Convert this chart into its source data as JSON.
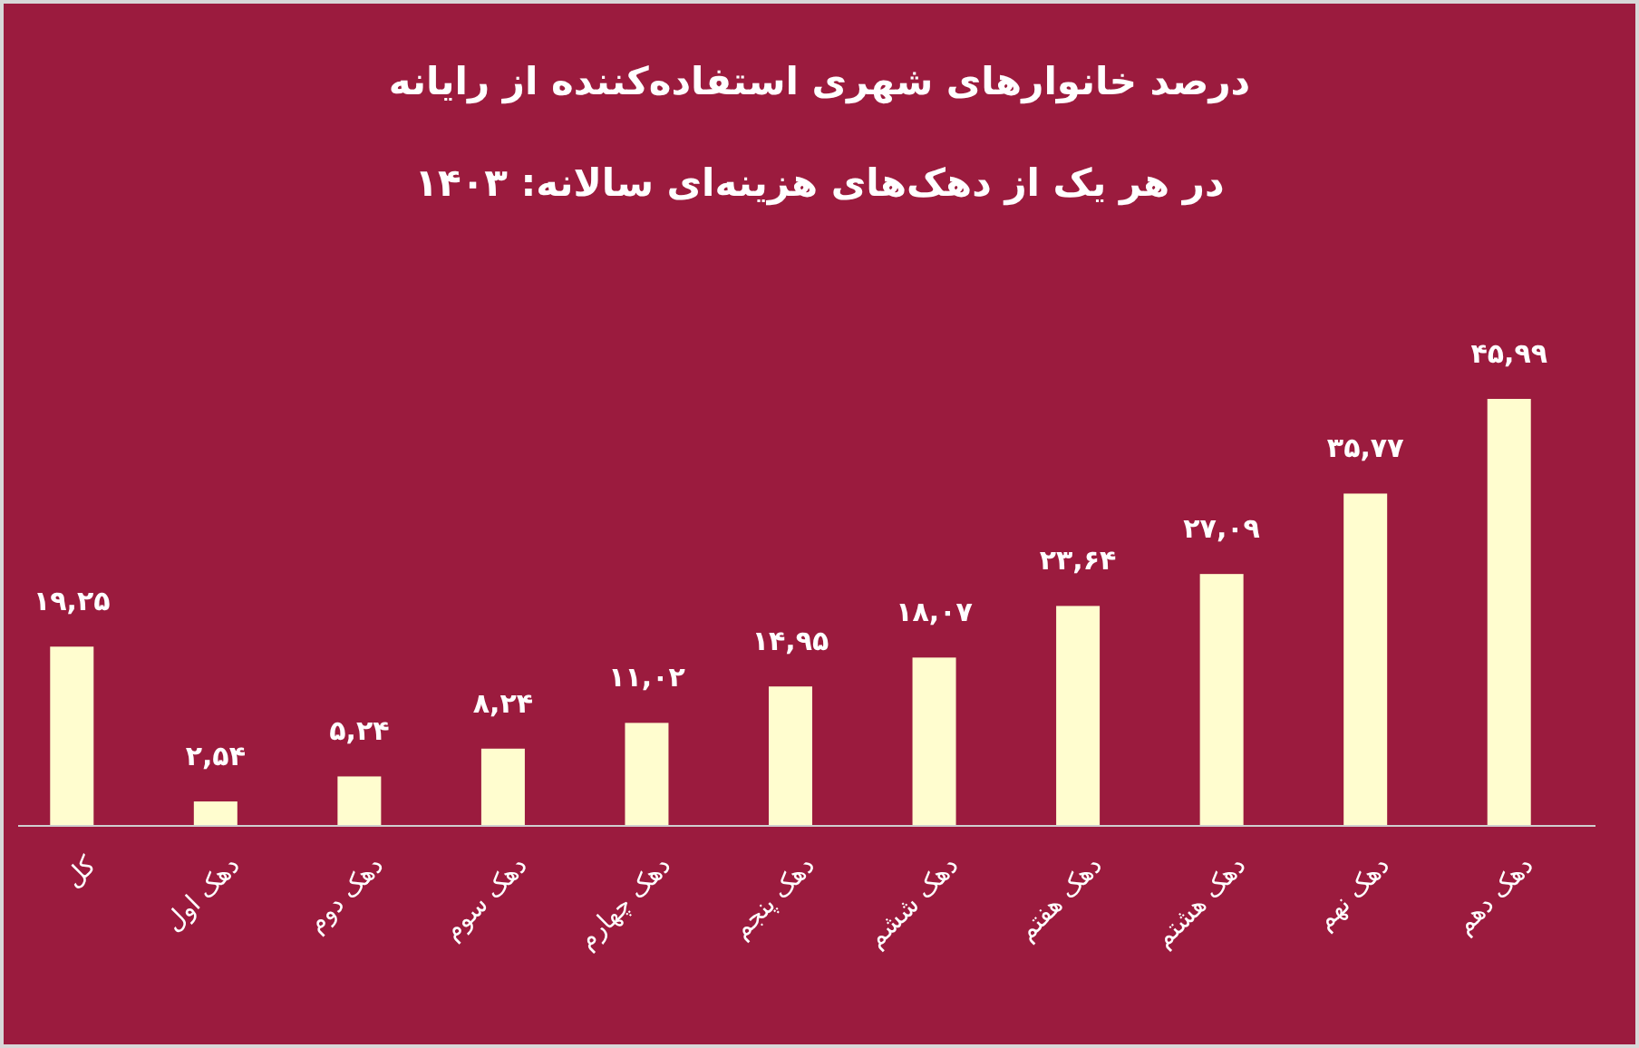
{
  "chart_data": {
    "type": "bar",
    "title": "درصد خانوارهای شهری استفاده‌کننده از رایانه",
    "subtitle": "در هر یک از دهک‌های هزینه‌ای سالانه: ۱۴۰۳",
    "categories": [
      "کل",
      "دهک اول",
      "دهک دوم",
      "دهک سوم",
      "دهک چهارم",
      "دهک پنجم",
      "دهک ششم",
      "دهک هفتم",
      "دهک هشتم",
      "دهک نهم",
      "دهک دهم"
    ],
    "values": [
      19.25,
      2.54,
      5.24,
      8.24,
      11.02,
      14.95,
      18.07,
      23.64,
      27.09,
      35.77,
      45.99
    ],
    "value_labels": [
      "۱۹,۲۵",
      "۲,۵۴",
      "۵,۲۴",
      "۸,۲۴",
      "۱۱,۰۲",
      "۱۴,۹۵",
      "۱۸,۰۷",
      "۲۳,۶۴",
      "۲۷,۰۹",
      "۳۵,۷۷",
      "۴۵,۹۹"
    ],
    "color": "#fffdcf"
  }
}
